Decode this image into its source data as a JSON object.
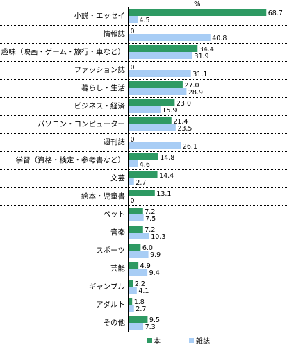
{
  "chart_data": {
    "type": "bar",
    "orientation": "horizontal",
    "unit": "%",
    "xlim": [
      0,
      70
    ],
    "categories": [
      "小説・エッセイ",
      "情報誌",
      "趣味（映画・ゲーム・旅行・車など）",
      "ファッション誌",
      "暮らし・生活",
      "ビジネス・経済",
      "パソコン・コンピューター",
      "週刊誌",
      "学習（資格・検定・参考書など）",
      "文芸",
      "絵本・児童書",
      "ペット",
      "音楽",
      "スポーツ",
      "芸能",
      "ギャンブル",
      "アダルト",
      "その他"
    ],
    "series": [
      {
        "name": "本",
        "color": "#2e9a63",
        "values": [
          68.7,
          0,
          34.4,
          0,
          27.0,
          23.0,
          21.4,
          0,
          14.8,
          14.4,
          13.1,
          7.2,
          7.2,
          6.0,
          4.9,
          2.2,
          1.8,
          9.5
        ],
        "labels": [
          "68.7",
          "0",
          "34.4",
          "0",
          "27.0",
          "23.0",
          "21.4",
          "0",
          "14.8",
          "14.4",
          "13.1",
          "7.2",
          "7.2",
          "6.0",
          "4.9",
          "2.2",
          "1.8",
          "9.5"
        ]
      },
      {
        "name": "雑誌",
        "color": "#a8cdf5",
        "values": [
          4.5,
          40.8,
          31.9,
          31.1,
          28.9,
          15.9,
          23.5,
          26.1,
          4.6,
          2.7,
          0,
          7.5,
          10.3,
          9.9,
          9.4,
          4.1,
          2.7,
          7.3
        ],
        "labels": [
          "4.5",
          "40.8",
          "31.9",
          "31.1",
          "28.9",
          "15.9",
          "23.5",
          "26.1",
          "4.6",
          "2.7",
          "0",
          "7.5",
          "10.3",
          "9.9",
          "9.4",
          "4.1",
          "2.7",
          "7.3"
        ]
      }
    ],
    "grid": false,
    "legend": "bottom"
  }
}
